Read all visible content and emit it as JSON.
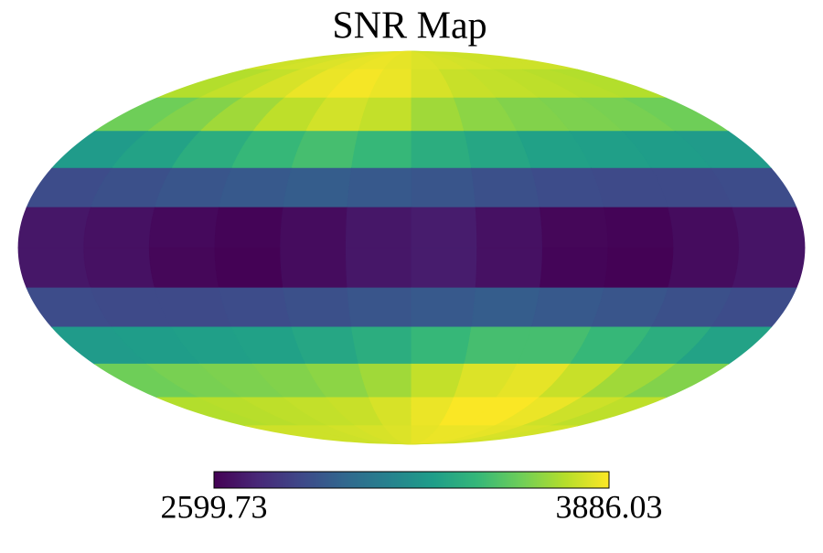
{
  "chart_data": {
    "type": "mollweide",
    "title": "SNR Map",
    "xlim": [
      180,
      -180
    ],
    "ylim": [
      -90,
      90
    ],
    "x": [
      165,
      135,
      105,
      75,
      45,
      15,
      -15,
      -45,
      -75,
      -105,
      -135,
      -165
    ],
    "y": [
      82.5,
      67.5,
      52.5,
      37.5,
      22.5,
      7.5,
      -7.5,
      -22.5,
      -37.5,
      -52.5,
      -67.5,
      -82.5
    ],
    "values": [
      [
        3790,
        3800,
        3820,
        3840,
        3850,
        3840,
        3820,
        3810,
        3800,
        3790,
        3790,
        3790
      ],
      [
        3740,
        3770,
        3810,
        3850,
        3870,
        3850,
        3810,
        3780,
        3770,
        3760,
        3750,
        3740
      ],
      [
        3600,
        3640,
        3700,
        3760,
        3800,
        3770,
        3700,
        3660,
        3640,
        3630,
        3620,
        3600
      ],
      [
        3300,
        3340,
        3400,
        3460,
        3500,
        3460,
        3400,
        3360,
        3330,
        3320,
        3310,
        3300
      ],
      [
        2900,
        2920,
        2940,
        2960,
        2980,
        2960,
        2940,
        2920,
        2900,
        2890,
        2890,
        2900
      ],
      [
        2680,
        2660,
        2630,
        2610,
        2640,
        2680,
        2700,
        2660,
        2620,
        2610,
        2640,
        2670
      ],
      [
        2680,
        2660,
        2620,
        2605,
        2640,
        2680,
        2700,
        2660,
        2615,
        2605,
        2640,
        2670
      ],
      [
        2900,
        2890,
        2890,
        2900,
        2920,
        2940,
        2960,
        2980,
        2960,
        2940,
        2920,
        2900
      ],
      [
        3300,
        3310,
        3320,
        3330,
        3360,
        3400,
        3460,
        3500,
        3500,
        3460,
        3400,
        3340
      ],
      [
        3600,
        3620,
        3630,
        3640,
        3660,
        3700,
        3770,
        3820,
        3840,
        3780,
        3700,
        3640
      ],
      [
        3740,
        3750,
        3760,
        3770,
        3780,
        3810,
        3850,
        3880,
        3880,
        3850,
        3790,
        3760
      ],
      [
        3790,
        3790,
        3790,
        3800,
        3810,
        3820,
        3840,
        3850,
        3850,
        3840,
        3810,
        3800
      ]
    ],
    "clim": [
      2599.73,
      3886.03
    ],
    "colors": [
      "#440154",
      "#482878",
      "#3e4989",
      "#31688e",
      "#26828e",
      "#1f9e89",
      "#35b779",
      "#6ece58",
      "#b5de2b",
      "#fde725"
    ]
  }
}
